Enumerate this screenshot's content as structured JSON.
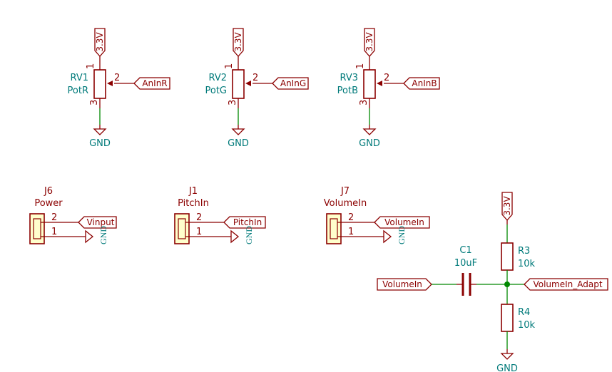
{
  "power_label": "3.3V",
  "ground_label": "GND",
  "potentiometers": [
    {
      "ref": "RV1",
      "value": "PotR",
      "net": "AnInR",
      "pin1": "1",
      "pin2": "2",
      "pin3": "3"
    },
    {
      "ref": "RV2",
      "value": "PotG",
      "net": "AnInG",
      "pin1": "1",
      "pin2": "2",
      "pin3": "3"
    },
    {
      "ref": "RV3",
      "value": "PotB",
      "net": "AnInB",
      "pin1": "1",
      "pin2": "2",
      "pin3": "3"
    }
  ],
  "connectors": [
    {
      "ref": "J6",
      "value": "Power",
      "net": "Vinput",
      "pin2": "2",
      "pin1": "1"
    },
    {
      "ref": "J1",
      "value": "PitchIn",
      "net": "PitchIn",
      "pin2": "2",
      "pin1": "1"
    },
    {
      "ref": "J7",
      "value": "VolumeIn",
      "net": "VolumeIn",
      "pin2": "2",
      "pin1": "1"
    }
  ],
  "divider": {
    "capacitor": {
      "ref": "C1",
      "value": "10uF"
    },
    "r_top": {
      "ref": "R3",
      "value": "10k"
    },
    "r_bottom": {
      "ref": "R4",
      "value": "10k"
    },
    "input_net": "VolumeIn",
    "output_net": "VolumeIn_Adapt"
  },
  "colors": {
    "wire": "#008800",
    "component": "#8b0000",
    "connector_fill": "#ffffcc",
    "ref_text": "#007a7a"
  }
}
